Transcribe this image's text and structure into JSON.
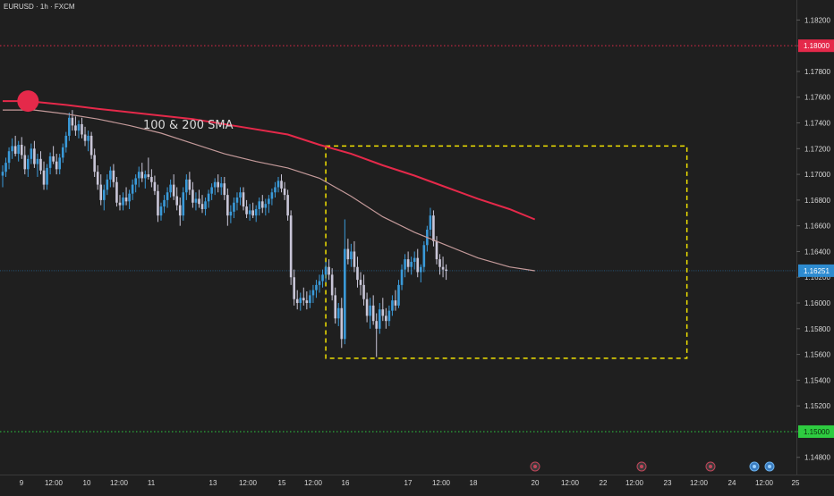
{
  "header": {
    "symbol_title": "EURUSD · 1h · FXCM"
  },
  "annotation": {
    "text": "100 & 200 SMA"
  },
  "colors": {
    "background": "#1f1f1f",
    "axis_background": "#1f1f1f",
    "candle_up": "#3a9ad9",
    "candle_down": "#c9c6d8",
    "sma100": "#c49a9a",
    "sma200": "#e5294a",
    "resistance": "#e5294a",
    "support": "#2ecc40",
    "range_box": "#f2e300",
    "price_line": "#2d8bd0",
    "text": "#d8d8d8"
  },
  "chart_data": {
    "type": "candlestick",
    "instrument": "EURUSD",
    "timeframe": "1h",
    "source": "FXCM",
    "y_axis": {
      "ticks": [
        "1.18200",
        "1.18000",
        "1.17800",
        "1.17600",
        "1.17400",
        "1.17200",
        "1.17000",
        "1.16800",
        "1.16600",
        "1.16400",
        "1.16200",
        "1.16000",
        "1.15800",
        "1.15600",
        "1.15400",
        "1.15200",
        "1.15000",
        "1.14800"
      ],
      "range": [
        1.1468,
        1.183
      ]
    },
    "x_axis": {
      "tick_labels": [
        "9",
        "12:00",
        "10",
        "12:00",
        "11",
        "13",
        "12:00",
        "15",
        "12:00",
        "16",
        "17",
        "12:00",
        "18",
        "20",
        "12:00",
        "22",
        "12:00",
        "23",
        "12:00",
        "24",
        "12:00",
        "25"
      ],
      "range_index": [
        0,
        260
      ]
    },
    "last_price": "1.16251",
    "levels": [
      {
        "name": "resistance",
        "value": 1.18,
        "label": "1.18000"
      },
      {
        "name": "support",
        "value": 1.15,
        "label": "1.15000"
      }
    ],
    "range_box": {
      "x_start": 102,
      "x_end": 216,
      "y_top": 1.1722,
      "y_bottom": 1.1557
    },
    "sma200": [
      [
        0,
        1.1757
      ],
      [
        8,
        1.1757
      ],
      [
        20,
        1.1754
      ],
      [
        30,
        1.1751
      ],
      [
        45,
        1.1747
      ],
      [
        60,
        1.1743
      ],
      [
        75,
        1.1737
      ],
      [
        90,
        1.1731
      ],
      [
        100,
        1.1723
      ],
      [
        110,
        1.1716
      ],
      [
        120,
        1.1707
      ],
      [
        130,
        1.1699
      ],
      [
        140,
        1.169
      ],
      [
        150,
        1.1681
      ],
      [
        160,
        1.1673
      ],
      [
        168,
        1.1665
      ]
    ],
    "sma100": [
      [
        0,
        1.175
      ],
      [
        10,
        1.175
      ],
      [
        20,
        1.1747
      ],
      [
        30,
        1.1743
      ],
      [
        40,
        1.1738
      ],
      [
        50,
        1.1732
      ],
      [
        60,
        1.1724
      ],
      [
        70,
        1.1716
      ],
      [
        80,
        1.171
      ],
      [
        90,
        1.1705
      ],
      [
        100,
        1.1697
      ],
      [
        110,
        1.1683
      ],
      [
        120,
        1.1667
      ],
      [
        130,
        1.1655
      ],
      [
        140,
        1.1645
      ],
      [
        150,
        1.1635
      ],
      [
        160,
        1.1628
      ],
      [
        168,
        1.1625
      ]
    ],
    "candles": [
      [
        1.1699,
        1.1707,
        1.169,
        1.1702
      ],
      [
        1.1702,
        1.1713,
        1.1698,
        1.1709
      ],
      [
        1.1709,
        1.1721,
        1.1704,
        1.1718
      ],
      [
        1.1718,
        1.1728,
        1.1712,
        1.1722
      ],
      [
        1.1722,
        1.173,
        1.1714,
        1.1716
      ],
      [
        1.1716,
        1.1726,
        1.171,
        1.1723
      ],
      [
        1.1723,
        1.1729,
        1.1712,
        1.1715
      ],
      [
        1.1715,
        1.1722,
        1.17,
        1.1704
      ],
      [
        1.1704,
        1.1715,
        1.1698,
        1.1712
      ],
      [
        1.1712,
        1.1724,
        1.1708,
        1.172
      ],
      [
        1.172,
        1.1726,
        1.1705,
        1.1708
      ],
      [
        1.1708,
        1.1716,
        1.1698,
        1.1712
      ],
      [
        1.1712,
        1.1718,
        1.17,
        1.1703
      ],
      [
        1.1703,
        1.171,
        1.1688,
        1.1692
      ],
      [
        1.1692,
        1.1708,
        1.1688,
        1.1705
      ],
      [
        1.1705,
        1.1717,
        1.17,
        1.1714
      ],
      [
        1.1714,
        1.1722,
        1.1708,
        1.171
      ],
      [
        1.171,
        1.1716,
        1.17,
        1.1704
      ],
      [
        1.1704,
        1.1716,
        1.17,
        1.1713
      ],
      [
        1.1713,
        1.1724,
        1.1709,
        1.1721
      ],
      [
        1.1721,
        1.1733,
        1.1717,
        1.173
      ],
      [
        1.173,
        1.1748,
        1.1726,
        1.1744
      ],
      [
        1.1744,
        1.175,
        1.1734,
        1.1738
      ],
      [
        1.1738,
        1.1745,
        1.173,
        1.1734
      ],
      [
        1.1734,
        1.1742,
        1.1728,
        1.1739
      ],
      [
        1.1739,
        1.1744,
        1.1728,
        1.1731
      ],
      [
        1.1731,
        1.1737,
        1.1722,
        1.1726
      ],
      [
        1.1726,
        1.1734,
        1.1718,
        1.173
      ],
      [
        1.173,
        1.1733,
        1.1712,
        1.1715
      ],
      [
        1.1715,
        1.172,
        1.1698,
        1.1702
      ],
      [
        1.1702,
        1.1707,
        1.1688,
        1.1692
      ],
      [
        1.1692,
        1.17,
        1.1676,
        1.168
      ],
      [
        1.168,
        1.1692,
        1.1672,
        1.1688
      ],
      [
        1.1688,
        1.17,
        1.1684,
        1.1696
      ],
      [
        1.1696,
        1.1706,
        1.169,
        1.1703
      ],
      [
        1.1703,
        1.1708,
        1.169,
        1.1694
      ],
      [
        1.1694,
        1.1698,
        1.1675,
        1.1678
      ],
      [
        1.1678,
        1.1684,
        1.1672,
        1.1676
      ],
      [
        1.1676,
        1.1686,
        1.1672,
        1.1682
      ],
      [
        1.1682,
        1.169,
        1.1676,
        1.1679
      ],
      [
        1.1679,
        1.1688,
        1.1673,
        1.1685
      ],
      [
        1.1685,
        1.1696,
        1.168,
        1.1692
      ],
      [
        1.1692,
        1.17,
        1.1686,
        1.1697
      ],
      [
        1.1697,
        1.1706,
        1.169,
        1.1702
      ],
      [
        1.1702,
        1.1709,
        1.1694,
        1.1697
      ],
      [
        1.1697,
        1.1703,
        1.1689,
        1.17
      ],
      [
        1.17,
        1.1713,
        1.1696,
        1.1698
      ],
      [
        1.1698,
        1.1704,
        1.169,
        1.1694
      ],
      [
        1.1694,
        1.1699,
        1.1684,
        1.1687
      ],
      [
        1.1687,
        1.1692,
        1.1663,
        1.1668
      ],
      [
        1.1668,
        1.1678,
        1.1664,
        1.1675
      ],
      [
        1.1675,
        1.1684,
        1.167,
        1.168
      ],
      [
        1.168,
        1.169,
        1.1674,
        1.1686
      ],
      [
        1.1686,
        1.1696,
        1.1682,
        1.1692
      ],
      [
        1.1692,
        1.17,
        1.168,
        1.1683
      ],
      [
        1.1683,
        1.169,
        1.1672,
        1.1676
      ],
      [
        1.1676,
        1.1682,
        1.166,
        1.1668
      ],
      [
        1.1668,
        1.169,
        1.1664,
        1.1686
      ],
      [
        1.1686,
        1.17,
        1.168,
        1.1696
      ],
      [
        1.1696,
        1.1702,
        1.1684,
        1.1688
      ],
      [
        1.1688,
        1.1694,
        1.1674,
        1.1678
      ],
      [
        1.1678,
        1.1686,
        1.1672,
        1.1681
      ],
      [
        1.1681,
        1.1688,
        1.1674,
        1.1677
      ],
      [
        1.1677,
        1.1684,
        1.167,
        1.1673
      ],
      [
        1.1673,
        1.1682,
        1.1668,
        1.1679
      ],
      [
        1.1679,
        1.1688,
        1.1674,
        1.1685
      ],
      [
        1.1685,
        1.1693,
        1.168,
        1.169
      ],
      [
        1.169,
        1.1697,
        1.1684,
        1.1694
      ],
      [
        1.1694,
        1.17,
        1.1686,
        1.169
      ],
      [
        1.169,
        1.1698,
        1.1684,
        1.1693
      ],
      [
        1.1693,
        1.1698,
        1.168,
        1.1684
      ],
      [
        1.1684,
        1.1689,
        1.166,
        1.1668
      ],
      [
        1.1668,
        1.1676,
        1.1662,
        1.1671
      ],
      [
        1.1671,
        1.1682,
        1.1666,
        1.1678
      ],
      [
        1.1678,
        1.1686,
        1.1672,
        1.1682
      ],
      [
        1.1682,
        1.169,
        1.1676,
        1.1686
      ],
      [
        1.1686,
        1.169,
        1.1672,
        1.1675
      ],
      [
        1.1675,
        1.168,
        1.1666,
        1.1669
      ],
      [
        1.1669,
        1.1677,
        1.1664,
        1.1672
      ],
      [
        1.1672,
        1.1678,
        1.1666,
        1.1668
      ],
      [
        1.1668,
        1.1676,
        1.1663,
        1.1673
      ],
      [
        1.1673,
        1.1682,
        1.1668,
        1.1679
      ],
      [
        1.1679,
        1.1684,
        1.167,
        1.1674
      ],
      [
        1.1674,
        1.1681,
        1.1668,
        1.1677
      ],
      [
        1.1677,
        1.1684,
        1.167,
        1.1681
      ],
      [
        1.1681,
        1.1689,
        1.1676,
        1.1686
      ],
      [
        1.1686,
        1.1694,
        1.1682,
        1.169
      ],
      [
        1.169,
        1.1698,
        1.1686,
        1.1695
      ],
      [
        1.1695,
        1.17,
        1.1686,
        1.1689
      ],
      [
        1.1689,
        1.1694,
        1.168,
        1.1684
      ],
      [
        1.1684,
        1.1688,
        1.1664,
        1.1668
      ],
      [
        1.1668,
        1.1672,
        1.1614,
        1.162
      ],
      [
        1.162,
        1.1626,
        1.1598,
        1.1603
      ],
      [
        1.1603,
        1.161,
        1.1595,
        1.16
      ],
      [
        1.16,
        1.1608,
        1.1594,
        1.1604
      ],
      [
        1.1604,
        1.1612,
        1.1598,
        1.1602
      ],
      [
        1.1602,
        1.1609,
        1.1595,
        1.16
      ],
      [
        1.16,
        1.161,
        1.1596,
        1.1606
      ],
      [
        1.1606,
        1.1614,
        1.16,
        1.161
      ],
      [
        1.161,
        1.1618,
        1.1604,
        1.1614
      ],
      [
        1.1614,
        1.1622,
        1.1608,
        1.1617
      ],
      [
        1.1617,
        1.1626,
        1.1612,
        1.1622
      ],
      [
        1.1622,
        1.1632,
        1.1616,
        1.1628
      ],
      [
        1.1628,
        1.1634,
        1.1618,
        1.1622
      ],
      [
        1.1622,
        1.1627,
        1.1602,
        1.1606
      ],
      [
        1.1606,
        1.1612,
        1.1584,
        1.1588
      ],
      [
        1.1588,
        1.16,
        1.1582,
        1.1596
      ],
      [
        1.1596,
        1.1604,
        1.1565,
        1.1572
      ],
      [
        1.1572,
        1.1665,
        1.1568,
        1.1642
      ],
      [
        1.1642,
        1.165,
        1.163,
        1.1634
      ],
      [
        1.1634,
        1.1646,
        1.1628,
        1.164
      ],
      [
        1.164,
        1.1648,
        1.1624,
        1.1628
      ],
      [
        1.1628,
        1.1636,
        1.1612,
        1.1618
      ],
      [
        1.1618,
        1.1624,
        1.1606,
        1.1614
      ],
      [
        1.1614,
        1.1622,
        1.1598,
        1.1603
      ],
      [
        1.1603,
        1.1608,
        1.1585,
        1.159
      ],
      [
        1.159,
        1.1604,
        1.158,
        1.1598
      ],
      [
        1.1598,
        1.1606,
        1.1583,
        1.1586
      ],
      [
        1.1586,
        1.1592,
        1.1558,
        1.158
      ],
      [
        1.158,
        1.16,
        1.1576,
        1.1595
      ],
      [
        1.1595,
        1.1604,
        1.1586,
        1.159
      ],
      [
        1.159,
        1.1596,
        1.158,
        1.1586
      ],
      [
        1.1586,
        1.1598,
        1.1582,
        1.1594
      ],
      [
        1.1594,
        1.1606,
        1.159,
        1.1602
      ],
      [
        1.1602,
        1.161,
        1.1594,
        1.1598
      ],
      [
        1.1598,
        1.1618,
        1.1596,
        1.1614
      ],
      [
        1.1614,
        1.163,
        1.161,
        1.1626
      ],
      [
        1.1626,
        1.1638,
        1.162,
        1.1634
      ],
      [
        1.1634,
        1.164,
        1.1624,
        1.1628
      ],
      [
        1.1628,
        1.1636,
        1.1622,
        1.1632
      ],
      [
        1.1632,
        1.164,
        1.1626,
        1.1635
      ],
      [
        1.1635,
        1.1642,
        1.162,
        1.1624
      ],
      [
        1.1624,
        1.163,
        1.1616,
        1.1628
      ],
      [
        1.1628,
        1.1648,
        1.1624,
        1.1645
      ],
      [
        1.1645,
        1.166,
        1.164,
        1.1657
      ],
      [
        1.1657,
        1.1674,
        1.1652,
        1.1668
      ],
      [
        1.1668,
        1.1672,
        1.1644,
        1.1648
      ],
      [
        1.1648,
        1.1652,
        1.163,
        1.1634
      ],
      [
        1.1634,
        1.1638,
        1.1622,
        1.1628
      ],
      [
        1.1628,
        1.1636,
        1.162,
        1.1626
      ],
      [
        1.1626,
        1.163,
        1.1618,
        1.1625
      ]
    ],
    "candle_x_start": 0,
    "ylabel": ""
  },
  "event_icons": [
    "flash-icon",
    "flag-icon-1",
    "flag-icon-2",
    "flag-icon-3",
    "globe-icon-1",
    "globe-icon-2"
  ]
}
